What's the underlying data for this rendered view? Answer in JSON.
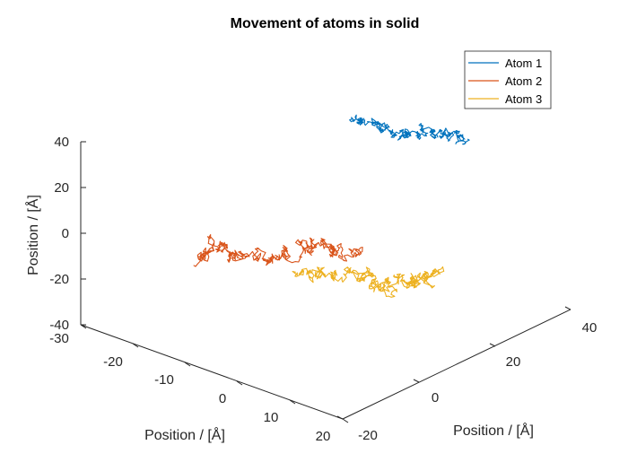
{
  "chart_data": {
    "type": "line3d",
    "title": "Movement of atoms in solid",
    "xlabel": "Position / [Å]",
    "ylabel": "Position / [Å]",
    "zlabel": "Position / [Å]",
    "x_ticks": [
      "-30",
      "-20",
      "-10",
      "0",
      "10",
      "20"
    ],
    "y_ticks": [
      "-20",
      "0",
      "20",
      "40"
    ],
    "z_ticks": [
      "40",
      "20",
      "0",
      "-20",
      "-40"
    ],
    "legend_position": "top-right",
    "grid": false,
    "series": [
      {
        "name": "Atom 1",
        "color": "#0072BD",
        "start": [
          -30,
          15,
          35
        ],
        "end": [
          -10,
          35,
          30
        ]
      },
      {
        "name": "Atom 2",
        "color": "#D95319",
        "start": [
          -5,
          -22,
          -8
        ],
        "end": [
          -15,
          10,
          10
        ]
      },
      {
        "name": "Atom 3",
        "color": "#EDB120",
        "start": [
          -10,
          0,
          -20
        ],
        "end": [
          10,
          10,
          -20
        ]
      }
    ]
  }
}
